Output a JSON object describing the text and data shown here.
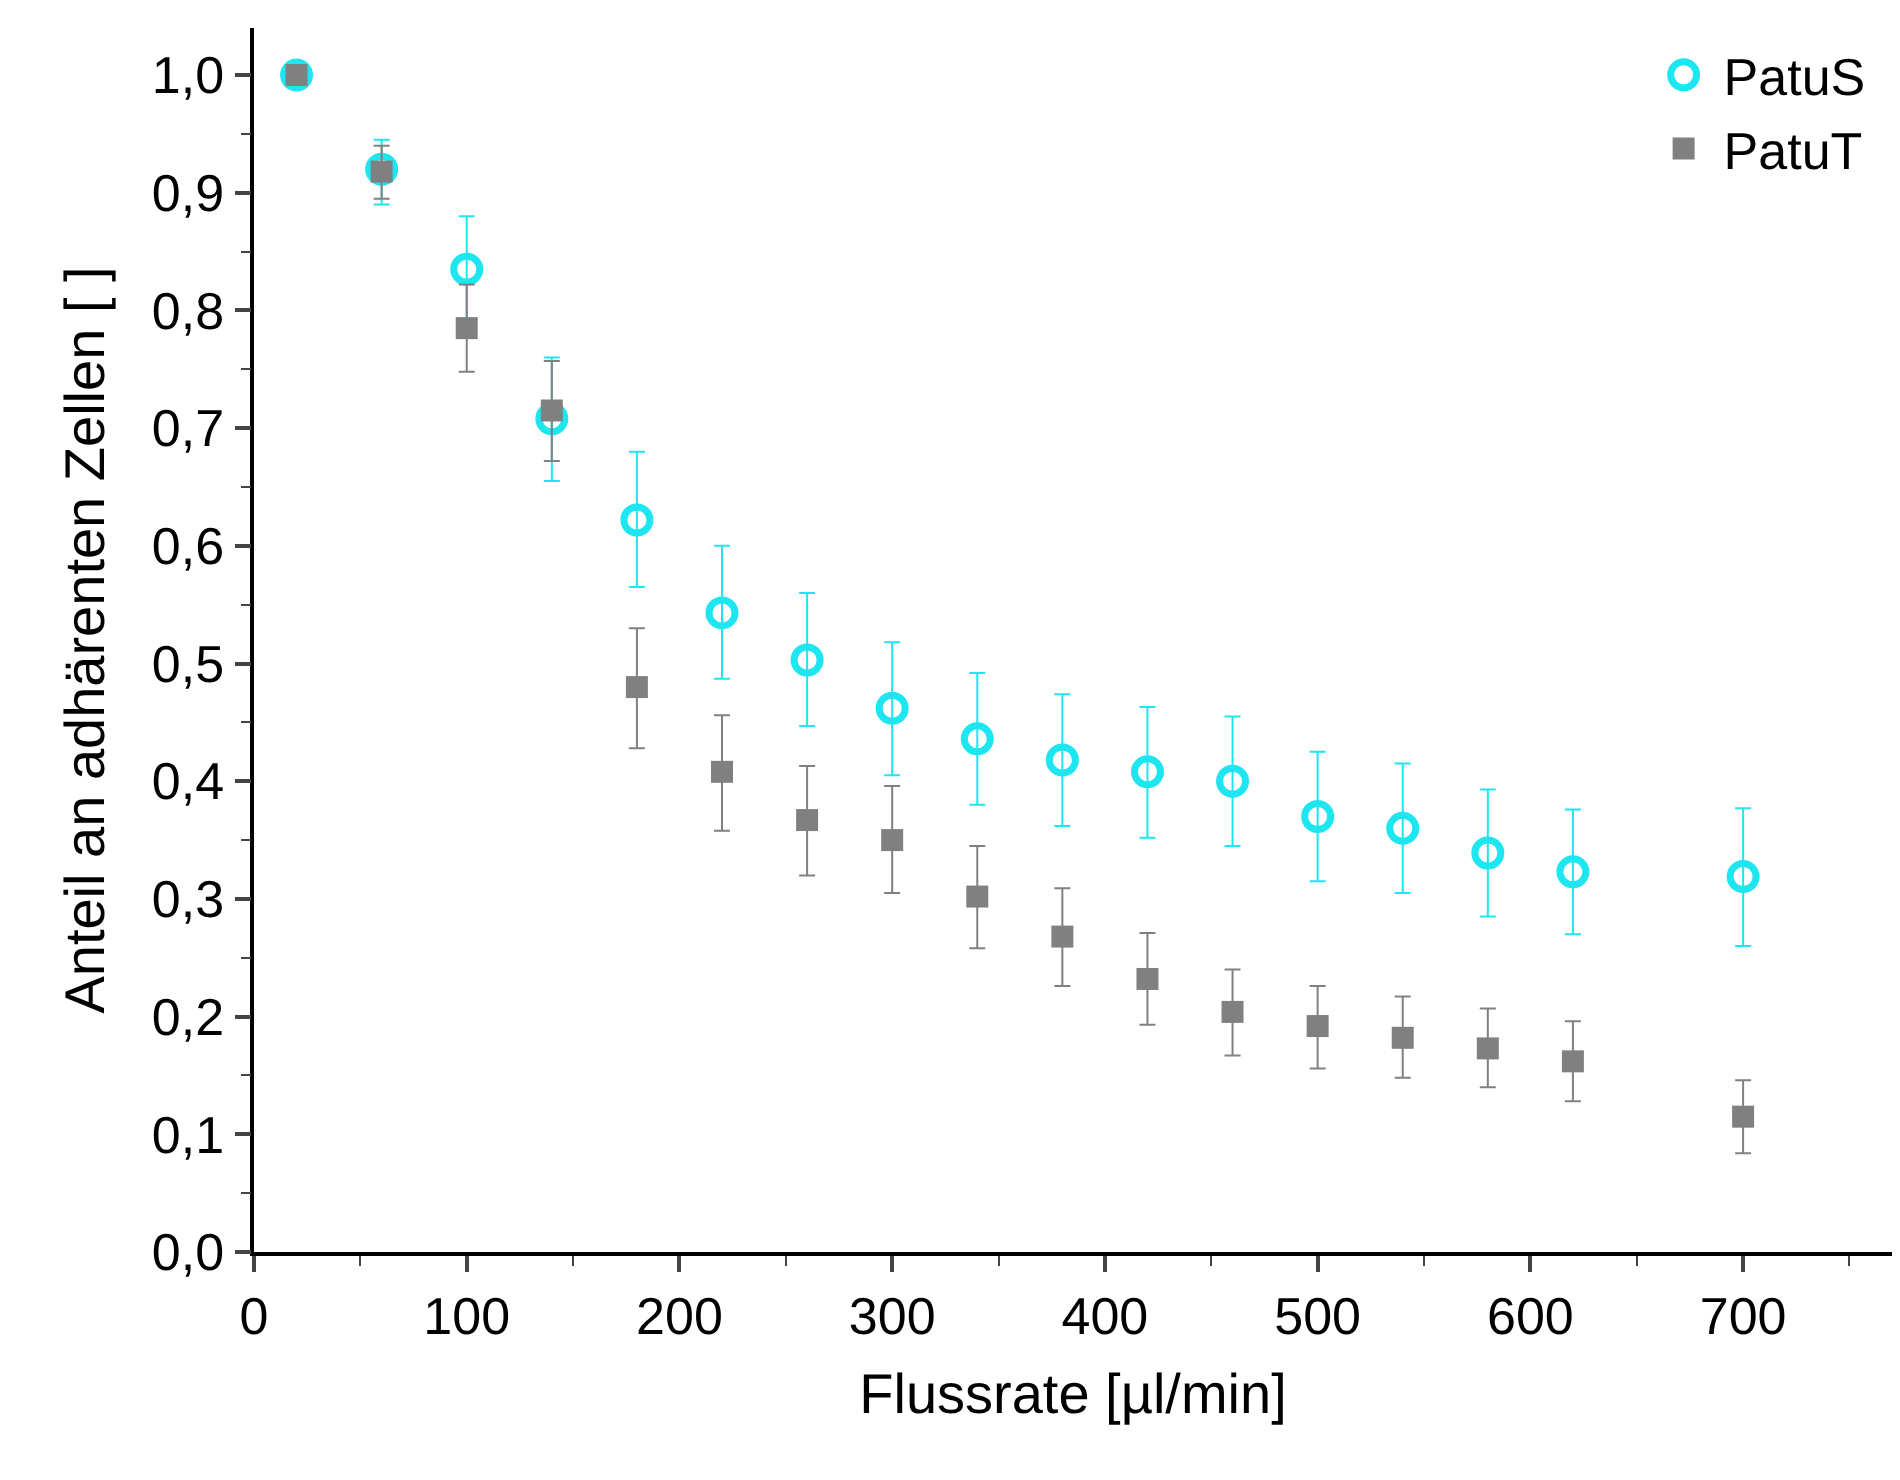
{
  "chart_data": {
    "type": "scatter",
    "xlabel": "Flussrate [µl/min]",
    "ylabel": "Anteil an adhärenten Zellen [ ]",
    "x": [
      20,
      60,
      100,
      140,
      180,
      220,
      260,
      300,
      340,
      380,
      420,
      460,
      500,
      540,
      580,
      620,
      700
    ],
    "series": [
      {
        "name": "PatuS",
        "color": "#1ee6f0",
        "marker": "circle",
        "values": [
          1.0,
          0.92,
          0.835,
          0.708,
          0.622,
          0.543,
          0.503,
          0.462,
          0.436,
          0.418,
          0.408,
          0.4,
          0.37,
          0.36,
          0.339,
          0.323,
          0.319
        ],
        "errors": [
          null,
          [
            0.89,
            0.945
          ],
          [
            0.79,
            0.88
          ],
          [
            0.655,
            0.76
          ],
          [
            0.565,
            0.68
          ],
          [
            0.487,
            0.6
          ],
          [
            0.447,
            0.56
          ],
          [
            0.405,
            0.518
          ],
          [
            0.38,
            0.492
          ],
          [
            0.362,
            0.474
          ],
          [
            0.352,
            0.463
          ],
          [
            0.345,
            0.455
          ],
          [
            0.315,
            0.425
          ],
          [
            0.305,
            0.415
          ],
          [
            0.285,
            0.393
          ],
          [
            0.27,
            0.376
          ],
          [
            0.26,
            0.377
          ]
        ]
      },
      {
        "name": "PatuT",
        "color": "#808080",
        "marker": "square",
        "values": [
          1.0,
          0.918,
          0.785,
          0.715,
          0.48,
          0.408,
          0.367,
          0.35,
          0.302,
          0.268,
          0.232,
          0.204,
          0.192,
          0.182,
          0.173,
          0.162,
          0.115
        ],
        "errors": [
          null,
          [
            0.895,
            0.94
          ],
          [
            0.748,
            0.822
          ],
          [
            0.672,
            0.757
          ],
          [
            0.428,
            0.53
          ],
          [
            0.358,
            0.456
          ],
          [
            0.32,
            0.413
          ],
          [
            0.305,
            0.396
          ],
          [
            0.258,
            0.345
          ],
          [
            0.226,
            0.309
          ],
          [
            0.193,
            0.271
          ],
          [
            0.167,
            0.24
          ],
          [
            0.156,
            0.226
          ],
          [
            0.148,
            0.217
          ],
          [
            0.14,
            0.207
          ],
          [
            0.128,
            0.196
          ],
          [
            0.084,
            0.146
          ]
        ]
      }
    ],
    "xlim": [
      0,
      770
    ],
    "xticks": [
      0,
      100,
      200,
      300,
      400,
      500,
      600,
      700
    ],
    "ylim": [
      0,
      1.04
    ],
    "yticks": [
      {
        "value": 0,
        "label": "0,0"
      },
      {
        "value": 0.1,
        "label": "0,1"
      },
      {
        "value": 0.2,
        "label": "0,2"
      },
      {
        "value": 0.3,
        "label": "0,3"
      },
      {
        "value": 0.4,
        "label": "0,4"
      },
      {
        "value": 0.5,
        "label": "0,5"
      },
      {
        "value": 0.6,
        "label": "0,6"
      },
      {
        "value": 0.7,
        "label": "0,7"
      },
      {
        "value": 0.8,
        "label": "0,8"
      },
      {
        "value": 0.9,
        "label": "0,9"
      },
      {
        "value": 1.0,
        "label": "1,0"
      }
    ],
    "legend": "top right"
  }
}
